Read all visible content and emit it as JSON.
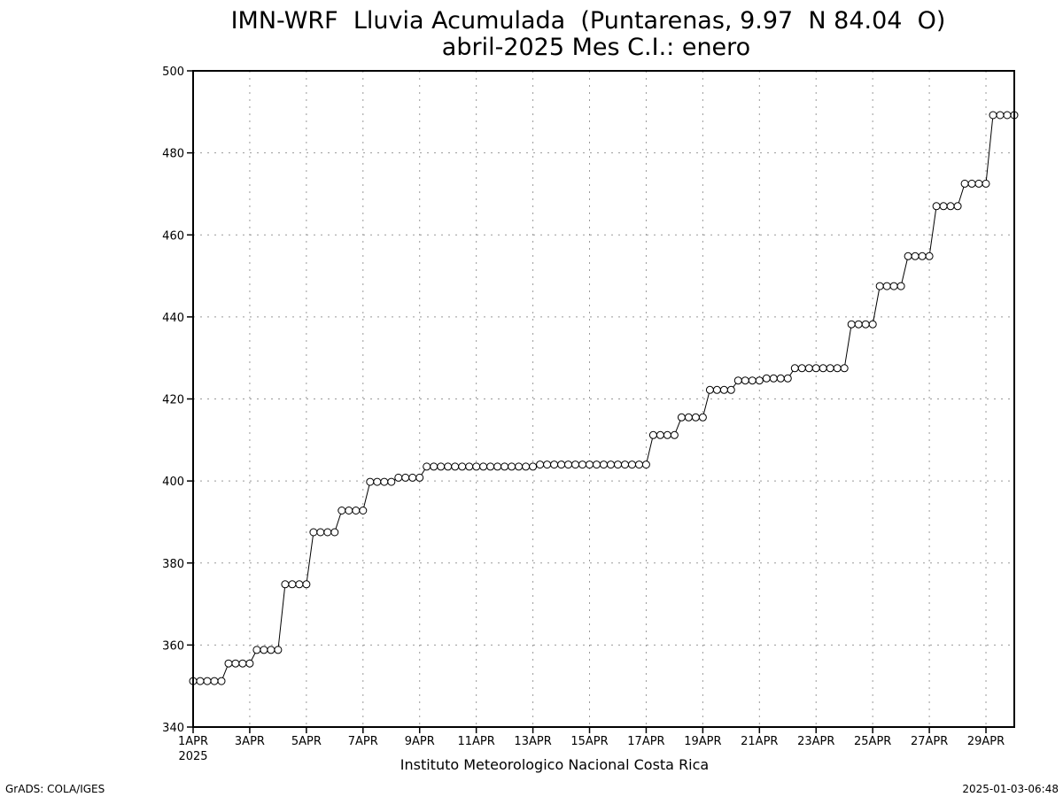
{
  "chart_data": {
    "type": "line",
    "title": "IMN-WRF  Lluvia Acumulada  (Puntarenas, 9.97  N 84.04  O)",
    "subtitle": "abril-2025 Mes C.I.: enero",
    "xlabel": "Instituto Meteorologico Nacional Costa Rica",
    "ylabel": "",
    "ylim": [
      340,
      500
    ],
    "yticks": [
      340,
      360,
      380,
      400,
      420,
      440,
      460,
      480,
      500
    ],
    "xlim_days": [
      1,
      30
    ],
    "xticks": [
      {
        "day": 1,
        "label": "1APR"
      },
      {
        "day": 3,
        "label": "3APR"
      },
      {
        "day": 5,
        "label": "5APR"
      },
      {
        "day": 7,
        "label": "7APR"
      },
      {
        "day": 9,
        "label": "9APR"
      },
      {
        "day": 11,
        "label": "11APR"
      },
      {
        "day": 13,
        "label": "13APR"
      },
      {
        "day": 15,
        "label": "15APR"
      },
      {
        "day": 17,
        "label": "17APR"
      },
      {
        "day": 19,
        "label": "19APR"
      },
      {
        "day": 21,
        "label": "21APR"
      },
      {
        "day": 23,
        "label": "23APR"
      },
      {
        "day": 25,
        "label": "25APR"
      },
      {
        "day": 27,
        "label": "27APR"
      },
      {
        "day": 29,
        "label": "29APR"
      }
    ],
    "year_label": "2025",
    "grid": true,
    "time_step_hours": 6,
    "series": [
      {
        "values": [
          351.2,
          351.2,
          351.2,
          351.2,
          351.2,
          355.5,
          355.5,
          355.5,
          355.5,
          358.8,
          358.8,
          358.8,
          358.8,
          374.8,
          374.8,
          374.8,
          374.8,
          387.5,
          387.5,
          387.5,
          387.5,
          392.8,
          392.8,
          392.8,
          392.8,
          399.8,
          399.8,
          399.8,
          399.8,
          400.8,
          400.8,
          400.8,
          400.8,
          403.5,
          403.5,
          403.5,
          403.5,
          403.5,
          403.5,
          403.5,
          403.5,
          403.5,
          403.5,
          403.5,
          403.5,
          403.5,
          403.5,
          403.5,
          403.5,
          404.0,
          404.0,
          404.0,
          404.0,
          404.0,
          404.0,
          404.0,
          404.0,
          404.0,
          404.0,
          404.0,
          404.0,
          404.0,
          404.0,
          404.0,
          404.0,
          411.2,
          411.2,
          411.2,
          411.2,
          415.5,
          415.5,
          415.5,
          415.5,
          422.2,
          422.2,
          422.2,
          422.2,
          424.5,
          424.5,
          424.5,
          424.5,
          425.0,
          425.0,
          425.0,
          425.0,
          427.5,
          427.5,
          427.5,
          427.5,
          427.5,
          427.5,
          427.5,
          427.5,
          438.2,
          438.2,
          438.2,
          438.2,
          447.5,
          447.5,
          447.5,
          447.5,
          454.8,
          454.8,
          454.8,
          454.8,
          467.0,
          467.0,
          467.0,
          467.0,
          472.5,
          472.5,
          472.5,
          472.5,
          489.2,
          489.2,
          489.2,
          489.2
        ]
      }
    ]
  },
  "footer": {
    "left": "GrADS: COLA/IGES",
    "right": "2025-01-03-06:48"
  }
}
